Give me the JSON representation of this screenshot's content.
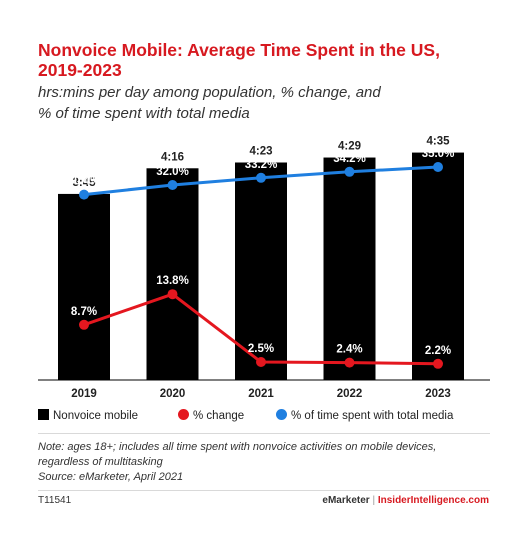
{
  "title_line1": "Nonvoice Mobile: Average Time Spent in the US,",
  "title_line2": "2019-2023",
  "subtitle_line1": "hrs:mins per day among population, % change, and",
  "subtitle_line2": "% of time spent with total media",
  "notes": {
    "line1": "Note: ages 18+; includes all time spent with nonvoice activities on mobile devices,",
    "line2": "regardless of multitasking",
    "source": "Source: eMarketer, April 2021"
  },
  "footer": {
    "id": "T11541",
    "brand_left": "eMarketer",
    "separator": "|",
    "brand_right": "InsiderIntelligence.com"
  },
  "colors": {
    "bar": "#000000",
    "change": "#e4171f",
    "share": "#1f7fe0",
    "title": "#d71920"
  },
  "chart_data": {
    "type": "bar",
    "categories": [
      "2019",
      "2020",
      "2021",
      "2022",
      "2023"
    ],
    "series": [
      {
        "name": "Nonvoice mobile",
        "type": "bar",
        "values": [
          225,
          256,
          263,
          269,
          275
        ],
        "labels": [
          "3:45",
          "4:16",
          "4:23",
          "4:29",
          "4:35"
        ]
      },
      {
        "name": "% change",
        "type": "line",
        "values": [
          8.7,
          13.8,
          2.5,
          2.4,
          2.2
        ],
        "labels": [
          "8.7%",
          "13.8%",
          "2.5%",
          "2.4%",
          "2.2%"
        ]
      },
      {
        "name": "% of time spent with total media",
        "type": "line",
        "values": [
          30.4,
          32.0,
          33.2,
          34.2,
          35.0
        ],
        "labels": [
          "30.4%",
          "32.0%",
          "33.2%",
          "34.2%",
          "35.0%"
        ]
      }
    ],
    "legend_position": "bottom",
    "grid": false
  }
}
